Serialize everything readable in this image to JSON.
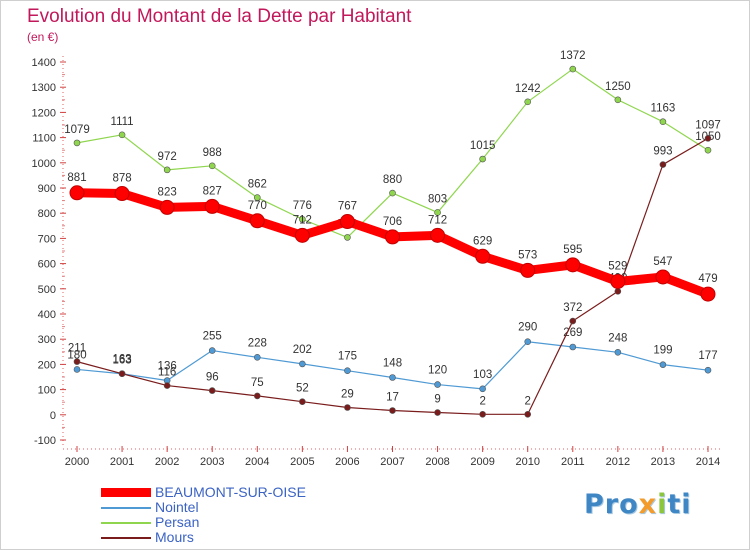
{
  "title": "Evolution du Montant de la Dette par Habitant",
  "unit": "(en €)",
  "logo": {
    "p": "Pro",
    "x": "x",
    "i": "i",
    "ti": "ti"
  },
  "chart_data": {
    "type": "line",
    "x": [
      2000,
      2001,
      2002,
      2003,
      2004,
      2005,
      2006,
      2007,
      2008,
      2009,
      2010,
      2011,
      2012,
      2013,
      2014
    ],
    "ylim": [
      -100,
      1400
    ],
    "yticks": [
      -100,
      0,
      100,
      200,
      300,
      400,
      500,
      600,
      700,
      800,
      900,
      1000,
      1100,
      1200,
      1300,
      1400
    ],
    "grid": false,
    "legend_position": "bottom-left",
    "series": [
      {
        "name": "BEAUMONT-SUR-OISE",
        "color": "#ff0000",
        "values": [
          881,
          878,
          823,
          827,
          770,
          712,
          767,
          706,
          712,
          629,
          573,
          595,
          529,
          547,
          479
        ]
      },
      {
        "name": "Nointel",
        "color": "#4f9ad4",
        "values": [
          180,
          163,
          136,
          255,
          228,
          202,
          175,
          148,
          120,
          103,
          290,
          269,
          248,
          199,
          177
        ]
      },
      {
        "name": "Persan",
        "color": "#8fd64e",
        "values": [
          1079,
          1111,
          972,
          988,
          862,
          776,
          704,
          880,
          803,
          1015,
          1242,
          1372,
          1250,
          1163,
          1050
        ]
      },
      {
        "name": "Mours",
        "color": "#7a1c1c",
        "values": [
          211,
          163,
          116,
          96,
          75,
          52,
          29,
          17,
          9,
          2,
          2,
          372,
          490,
          993,
          1097
        ]
      }
    ]
  }
}
